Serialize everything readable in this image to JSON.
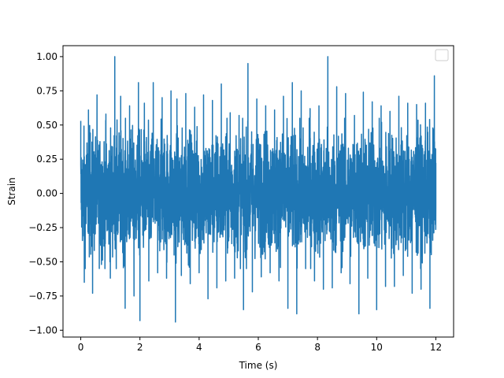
{
  "chart_data": {
    "type": "line",
    "title": "",
    "xlabel": "Time (s)",
    "ylabel": "Strain",
    "xlim": [
      -0.6,
      12.6
    ],
    "ylim": [
      -1.05,
      1.08
    ],
    "grid": false,
    "legend": {
      "placement": "top-right",
      "entries": []
    },
    "line_color": "#1f77b4",
    "xticks": [
      0,
      2,
      4,
      6,
      8,
      10,
      12
    ],
    "xtick_labels": [
      "0",
      "2",
      "4",
      "6",
      "8",
      "10",
      "12"
    ],
    "yticks": [
      -1.0,
      -0.75,
      -0.5,
      -0.25,
      0.0,
      0.25,
      0.5,
      0.75,
      1.0
    ],
    "ytick_labels": [
      "−1.00",
      "−0.75",
      "−0.50",
      "−0.25",
      "0.00",
      "0.25",
      "0.50",
      "0.75",
      "1.00"
    ],
    "series": [
      {
        "x": [
          0.0,
          0.12,
          0.26,
          0.4,
          0.55,
          0.7,
          0.85,
          1.0,
          1.15,
          1.2,
          1.35,
          1.5,
          1.65,
          1.8,
          1.95,
          2.0,
          2.15,
          2.3,
          2.45,
          2.6,
          2.75,
          2.9,
          3.05,
          3.2,
          3.25,
          3.4,
          3.55,
          3.7,
          3.85,
          4.0,
          4.15,
          4.3,
          4.45,
          4.6,
          4.75,
          4.9,
          5.05,
          5.2,
          5.35,
          5.5,
          5.65,
          5.8,
          5.95,
          6.1,
          6.25,
          6.4,
          6.55,
          6.7,
          6.85,
          7.0,
          7.15,
          7.3,
          7.45,
          7.6,
          7.75,
          7.9,
          8.05,
          8.2,
          8.35,
          8.5,
          8.65,
          8.8,
          8.95,
          9.1,
          9.25,
          9.4,
          9.55,
          9.7,
          9.85,
          10.0,
          10.15,
          10.3,
          10.45,
          10.6,
          10.75,
          10.9,
          11.05,
          11.2,
          11.35,
          11.5,
          11.65,
          11.8,
          11.95,
          12.0
        ],
        "y": [
          0.53,
          -0.65,
          0.61,
          -0.73,
          0.72,
          -0.52,
          0.58,
          -0.62,
          1.0,
          -0.55,
          0.71,
          -0.84,
          0.64,
          -0.75,
          0.81,
          -0.93,
          0.66,
          -0.64,
          0.81,
          -0.58,
          0.7,
          -0.62,
          0.75,
          -0.94,
          0.69,
          -0.6,
          0.73,
          -0.66,
          0.63,
          -0.58,
          0.72,
          -0.77,
          0.68,
          -0.69,
          0.8,
          -0.64,
          0.59,
          -0.62,
          0.57,
          -0.85,
          0.95,
          -0.72,
          0.69,
          -0.61,
          0.64,
          -0.58,
          0.61,
          -0.64,
          0.71,
          -0.84,
          0.81,
          -0.88,
          0.75,
          -0.55,
          0.62,
          -0.64,
          0.64,
          -0.7,
          1.0,
          -0.69,
          0.78,
          -0.58,
          0.73,
          -0.66,
          0.57,
          -0.88,
          0.74,
          -0.62,
          0.67,
          -0.85,
          0.64,
          -0.68,
          0.6,
          -0.68,
          0.71,
          -0.6,
          0.66,
          -0.73,
          0.65,
          -0.7,
          0.66,
          -0.84,
          0.86,
          -0.09
        ]
      }
    ]
  }
}
